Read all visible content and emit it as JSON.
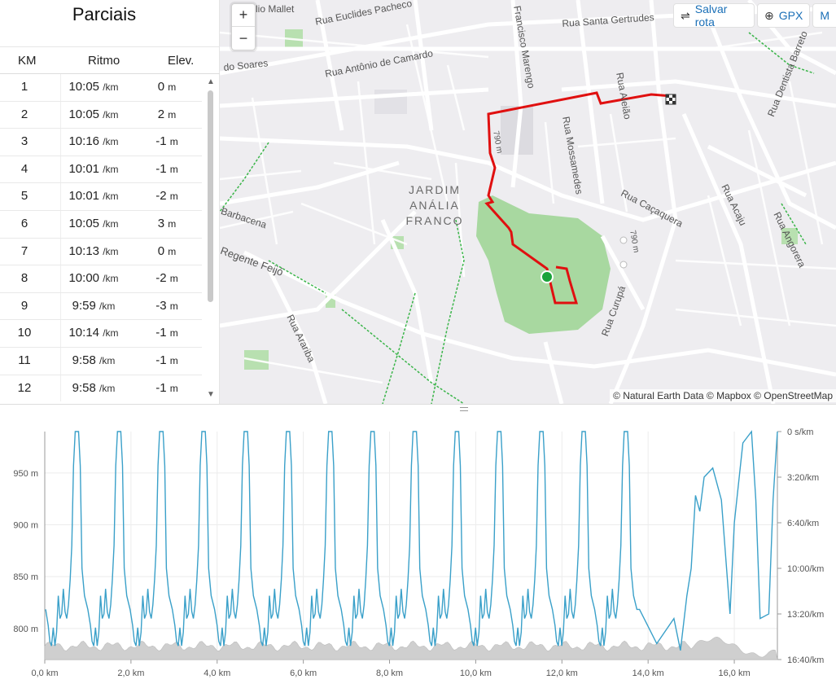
{
  "splits": {
    "title": "Parciais",
    "columns": {
      "km": "KM",
      "pace": "Ritmo",
      "elev": "Elev."
    },
    "pace_unit": "/km",
    "elev_unit": "m",
    "rows": [
      {
        "km": "1",
        "pace": "10:05",
        "elev": "0"
      },
      {
        "km": "2",
        "pace": "10:05",
        "elev": "2"
      },
      {
        "km": "3",
        "pace": "10:16",
        "elev": "-1"
      },
      {
        "km": "4",
        "pace": "10:01",
        "elev": "-1"
      },
      {
        "km": "5",
        "pace": "10:01",
        "elev": "-2"
      },
      {
        "km": "6",
        "pace": "10:05",
        "elev": "3"
      },
      {
        "km": "7",
        "pace": "10:13",
        "elev": "0"
      },
      {
        "km": "8",
        "pace": "10:00",
        "elev": "-2"
      },
      {
        "km": "9",
        "pace": "9:59",
        "elev": "-3"
      },
      {
        "km": "10",
        "pace": "10:14",
        "elev": "-1"
      },
      {
        "km": "11",
        "pace": "9:58",
        "elev": "-1"
      },
      {
        "km": "12",
        "pace": "9:58",
        "elev": "-1"
      }
    ]
  },
  "map": {
    "zoom_in": "+",
    "zoom_out": "−",
    "save_route": "Salvar rota",
    "gpx": "GPX",
    "more": "M",
    "attribution": "© Natural Earth Data © Mapbox © OpenStreetMap",
    "district": [
      "JARDIM",
      "ANÁLIA",
      "FRANCO"
    ],
    "streets": {
      "s1": "lio Mallet",
      "s2": "Rua Euclides Pacheco",
      "s3": "Francisco Marengo",
      "s4": "Rua Santa Gertrudes",
      "s5": "do Soares",
      "s6": "Rua Antônio de Camardo",
      "s7": "Rua Aleião",
      "s8": "Rua Dentista Barreto",
      "s9": "Rua Mossamedes",
      "s10": "Rua Caçaquera",
      "s11": "Rua Acaju",
      "s12": "Rua Angorera",
      "s13": "Barbacena",
      "s14": "Regente Feijó",
      "s15": "Rua Arariba",
      "s16": "Rua Curupá",
      "s17": "790 m",
      "s18": "790 m"
    }
  },
  "chart_data": {
    "type": "line",
    "x_unit": "km",
    "x_ticks": [
      "0,0 km",
      "2,0 km",
      "4,0 km",
      "6,0 km",
      "8,0 km",
      "10,0 km",
      "12,0 km",
      "14,0 km",
      "16,0 km"
    ],
    "xlim": [
      0,
      17
    ],
    "left_axis": {
      "ticks": [
        "800 m",
        "850 m",
        "900 m",
        "950 m"
      ],
      "ylim": [
        770,
        990
      ]
    },
    "right_axis": {
      "ticks": [
        "0 s/km",
        "3:20/km",
        "6:40/km",
        "10:00/km",
        "13:20/km",
        "16:40/km"
      ],
      "ylim_s_per_km": [
        0,
        1000
      ]
    },
    "series": [
      {
        "role": "pace",
        "color": "#3aa0c9",
        "lap_km": 1.0,
        "laps": 17
      },
      {
        "role": "elevation",
        "color": "#cfcfcf"
      }
    ]
  }
}
